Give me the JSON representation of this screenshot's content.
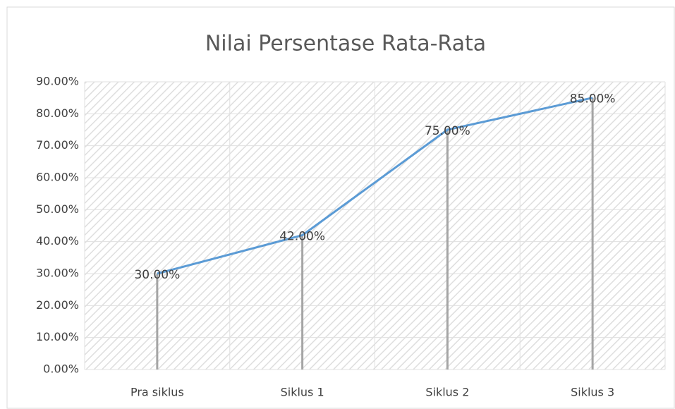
{
  "chart_data": {
    "type": "line",
    "title": "Nilai Persentase Rata-Rata",
    "categories": [
      "Pra siklus",
      "Siklus 1",
      "Siklus 2",
      "Siklus 3"
    ],
    "series": [
      {
        "name": "Nilai Persentase Rata-Rata",
        "color": "#5b9bd5",
        "values": [
          30,
          42,
          75,
          85
        ],
        "value_labels": [
          "30.00%",
          "42.00%",
          "75.00%",
          "85.00%"
        ]
      }
    ],
    "drop_line_color": "#a5a5a5",
    "ylim": [
      0,
      90
    ],
    "yticks": [
      {
        "value": 0,
        "label": "0.00%"
      },
      {
        "value": 10,
        "label": "10.00%"
      },
      {
        "value": 20,
        "label": "20.00%"
      },
      {
        "value": 30,
        "label": "30.00%"
      },
      {
        "value": 40,
        "label": "40.00%"
      },
      {
        "value": 50,
        "label": "50.00%"
      },
      {
        "value": 60,
        "label": "60.00%"
      },
      {
        "value": 70,
        "label": "70.00%"
      },
      {
        "value": 80,
        "label": "80.00%"
      },
      {
        "value": 90,
        "label": "90.00%"
      }
    ],
    "grid": true
  }
}
